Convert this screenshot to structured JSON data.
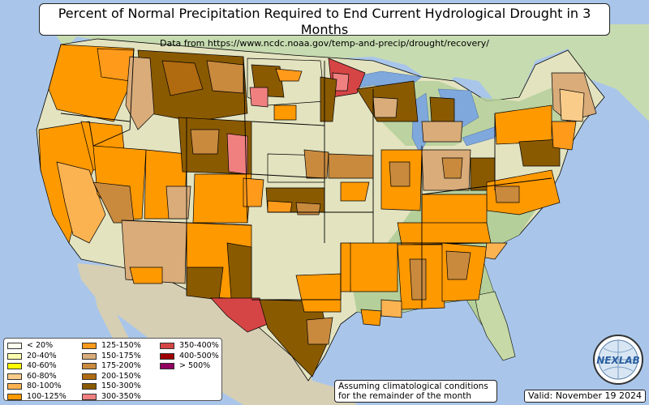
{
  "title": "Percent of Normal Precipitation Required to End Current Hydrological Drought in 3 Months",
  "subtitle": "Data from https://www.ncdc.noaa.gov/temp-and-precip/drought/recovery/",
  "legend": [
    {
      "label": "< 20%",
      "color": "#fffff0"
    },
    {
      "label": "20-40%",
      "color": "#ffffb0"
    },
    {
      "label": "40-60%",
      "color": "#ffff00"
    },
    {
      "label": "60-80%",
      "color": "#f9cc8a"
    },
    {
      "label": "80-100%",
      "color": "#fbb352"
    },
    {
      "label": "100-125%",
      "color": "#ff9900"
    },
    {
      "label": "125-150%",
      "color": "#ff9a1a"
    },
    {
      "label": "150-175%",
      "color": "#d9ac7a"
    },
    {
      "label": "175-200%",
      "color": "#c98a3e"
    },
    {
      "label": "200-150%",
      "color": "#b06a10"
    },
    {
      "label": "150-300%",
      "color": "#8a5a00"
    },
    {
      "label": "300-350%",
      "color": "#f08080"
    },
    {
      "label": "350-400%",
      "color": "#d64545"
    },
    {
      "label": "400-500%",
      "color": "#a00000"
    },
    {
      "label": "> 500%",
      "color": "#900060"
    }
  ],
  "note": {
    "line1": "Assuming climatological conditions",
    "line2": "for the remainder of the month"
  },
  "valid": "Valid: November 19 2024",
  "logo": {
    "text": "NEXLAB",
    "icon": "globe-icon"
  },
  "colors": {
    "ocean": "#a9c6ea",
    "land_plain": "#e3e3c0",
    "land_forest": "#b5cf9a",
    "mexico": "#d6cfb4",
    "canada": "#c7dbb0",
    "lakes": "#7fa8dc"
  }
}
